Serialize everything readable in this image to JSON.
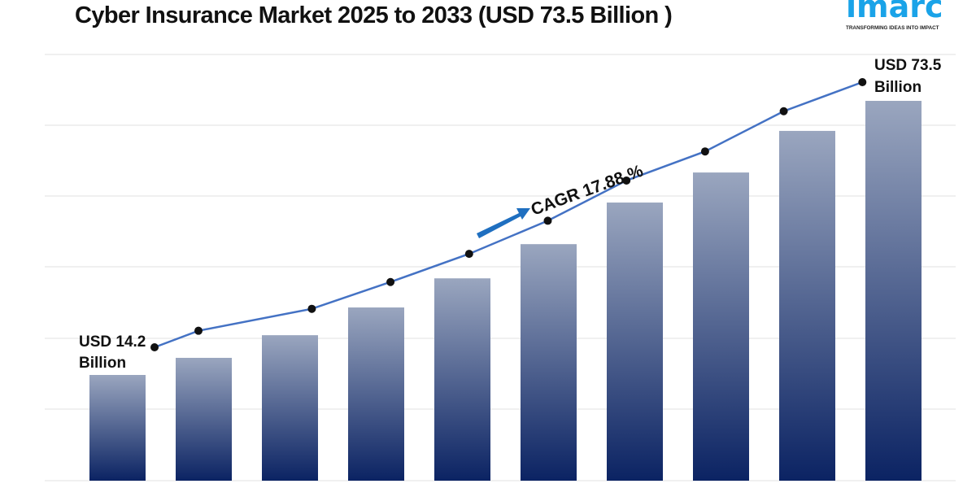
{
  "title": "Cyber Insurance Market 2025 to 2033 (USD 73.5 Billion )",
  "logo": {
    "word": "imarc",
    "tagline": "TRANSFORMING IDEAS INTO IMPACT",
    "color": "#1aa3e8"
  },
  "chart_data": {
    "type": "bar",
    "title": "Cyber Insurance Market 2025 to 2033 (USD 73.5 Billion )",
    "xlabel": "",
    "ylabel": "",
    "grid": true,
    "legend": "none",
    "values_unit": "USD Billion (estimated except first and last)",
    "series": [
      {
        "type": "bar",
        "values": [
          14.2,
          17.9,
          22.8,
          28.8,
          35.1,
          42.5,
          51.5,
          58.0,
          67.0,
          73.5
        ],
        "color_top": "#9aa6bf",
        "color_bottom": "#0b2363"
      },
      {
        "type": "line",
        "values": [
          14.2,
          17.9,
          22.8,
          28.8,
          35.1,
          42.5,
          51.5,
          58.0,
          67.0,
          73.5
        ],
        "color": "#4472c4",
        "marker_color": "#111111"
      }
    ],
    "annotations": {
      "start_label": [
        "USD 14.2",
        "Billion"
      ],
      "end_label": [
        "USD 73.5",
        "Billion"
      ],
      "cagr": "CAGR 17.88 %",
      "arrow_color": "#1f6fc0"
    }
  }
}
